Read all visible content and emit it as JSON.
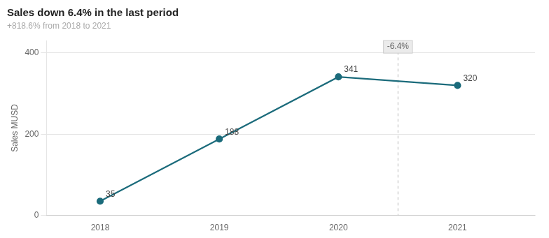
{
  "chart_data": {
    "type": "line",
    "title": "Sales down 6.4% in the last period",
    "subtitle": "+818.6% from 2018 to 2021",
    "x": [
      2018,
      2019,
      2020,
      2021
    ],
    "values": [
      35,
      188,
      341,
      320
    ],
    "color": "#1b6b7b",
    "marker": "circle",
    "line_style": "solid",
    "data_labels": true,
    "ylabel": "Sales MUSD",
    "xlim": [
      2017.55,
      2021.65
    ],
    "xticks": [
      2018,
      2019,
      2020,
      2021
    ],
    "ylim": [
      0,
      430
    ],
    "yticks": [
      0,
      200,
      400
    ],
    "grid": "y",
    "vlines": [
      {
        "x": 2020.5,
        "line_style": "dashed"
      }
    ],
    "annotations": [
      {
        "text": "-6.4%",
        "x": 2020.5,
        "y": 415
      }
    ]
  }
}
